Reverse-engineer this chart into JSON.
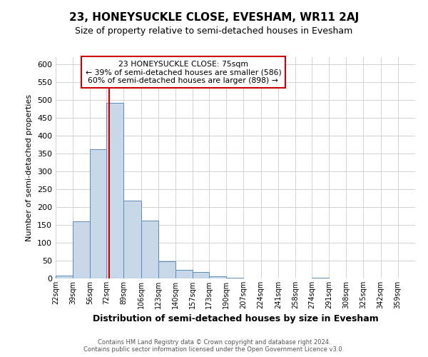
{
  "title": "23, HONEYSUCKLE CLOSE, EVESHAM, WR11 2AJ",
  "subtitle": "Size of property relative to semi-detached houses in Evesham",
  "xlabel": "Distribution of semi-detached houses by size in Evesham",
  "ylabel": "Number of semi-detached properties",
  "bin_labels": [
    "22sqm",
    "39sqm",
    "56sqm",
    "72sqm",
    "89sqm",
    "106sqm",
    "123sqm",
    "140sqm",
    "157sqm",
    "173sqm",
    "190sqm",
    "207sqm",
    "224sqm",
    "241sqm",
    "258sqm",
    "274sqm",
    "291sqm",
    "308sqm",
    "325sqm",
    "342sqm",
    "359sqm"
  ],
  "bin_edges": [
    22,
    39,
    56,
    72,
    89,
    106,
    123,
    140,
    157,
    173,
    190,
    207,
    224,
    241,
    258,
    274,
    291,
    308,
    325,
    342,
    359,
    376
  ],
  "bar_values": [
    8,
    160,
    362,
    493,
    218,
    163,
    49,
    24,
    18,
    7,
    2,
    1,
    0,
    1,
    0,
    2,
    0,
    0,
    0,
    1,
    0
  ],
  "bar_color": "#c8d8e8",
  "bar_edge_color": "#5b8db8",
  "vline_x": 75,
  "vline_color": "#cc0000",
  "annotation_title": "23 HONEYSUCKLE CLOSE: 75sqm",
  "annotation_line1": "← 39% of semi-detached houses are smaller (586)",
  "annotation_line2": "60% of semi-detached houses are larger (898) →",
  "annotation_box_color": "#cc0000",
  "ylim": [
    0,
    620
  ],
  "yticks": [
    0,
    50,
    100,
    150,
    200,
    250,
    300,
    350,
    400,
    450,
    500,
    550,
    600
  ],
  "footer_line1": "Contains HM Land Registry data © Crown copyright and database right 2024.",
  "footer_line2": "Contains public sector information licensed under the Open Government Licence v3.0.",
  "background_color": "#ffffff",
  "grid_color": "#cccccc",
  "title_fontsize": 11,
  "subtitle_fontsize": 9,
  "ylabel_fontsize": 8,
  "xlabel_fontsize": 9
}
